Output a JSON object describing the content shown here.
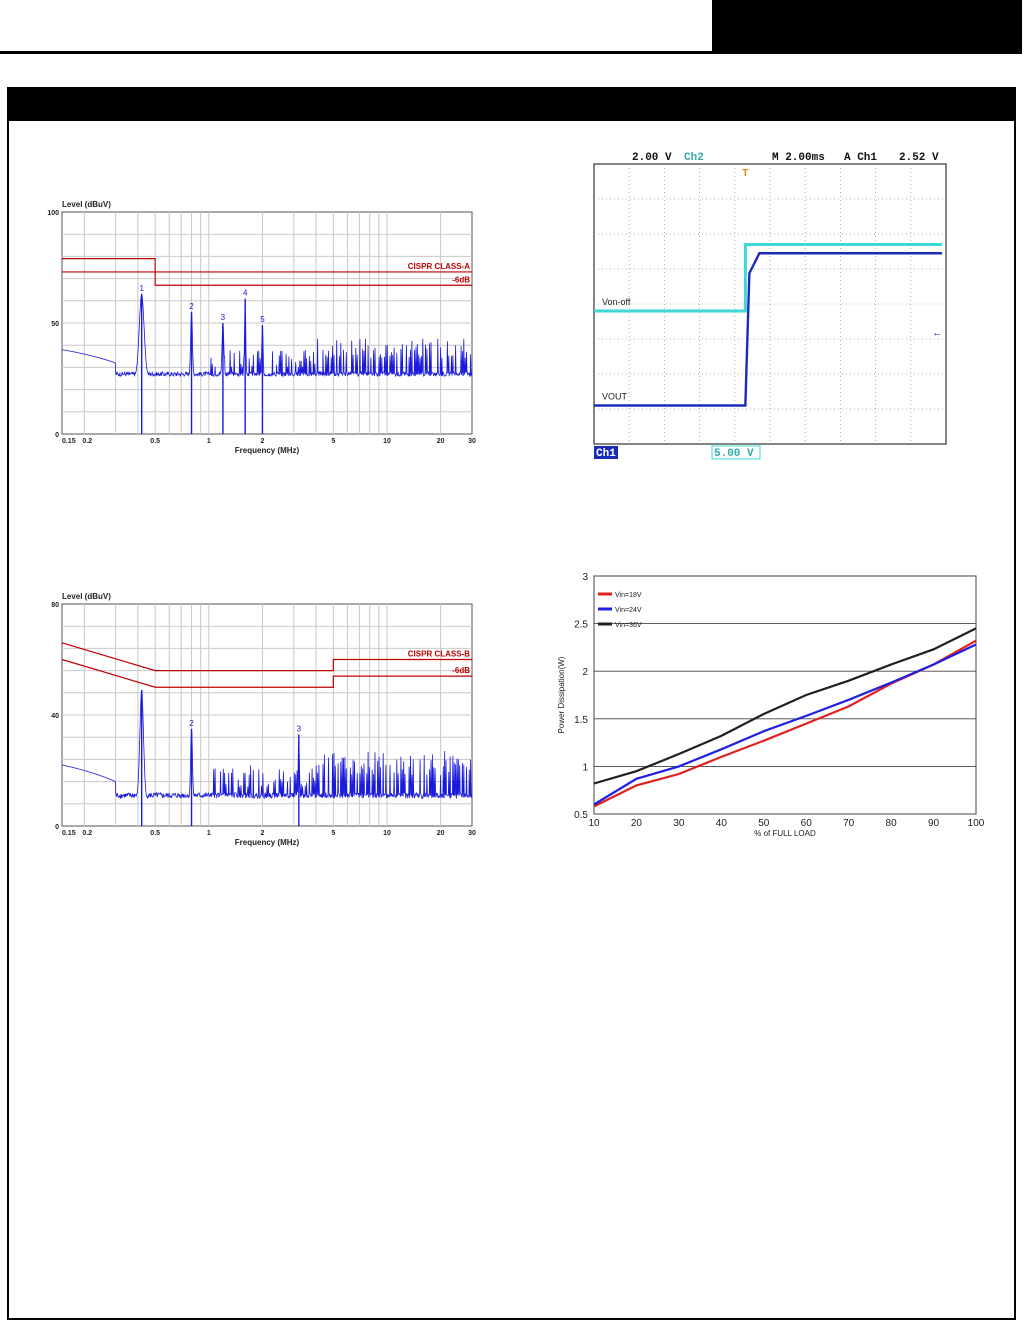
{
  "page": {
    "top_bar": "",
    "section_bar": ""
  },
  "charts": [
    {
      "type": "line",
      "ylabel": "Level (dBuV)",
      "xlabel": "Frequency (MHz)",
      "x_scale": "log",
      "xlim": [
        0.15,
        30
      ],
      "ylim": [
        0,
        100
      ],
      "y_ticks": [
        "0",
        "50",
        "100"
      ],
      "x_ticks": [
        {
          "v": 0.15,
          "t": "0.15"
        },
        {
          "v": 0.2,
          "t": "0.2"
        },
        {
          "v": 0.5,
          "t": "0.5"
        },
        {
          "v": 1,
          "t": "1"
        },
        {
          "v": 2,
          "t": "2"
        },
        {
          "v": 5,
          "t": "5"
        },
        {
          "v": 10,
          "t": "10"
        },
        {
          "v": 20,
          "t": "20"
        },
        {
          "v": 30,
          "t": "30"
        }
      ],
      "limits": [
        {
          "name": "CISPR CLASS-A",
          "points": [
            [
              0.15,
              79
            ],
            [
              0.5,
              79
            ],
            [
              0.5,
              73
            ],
            [
              30,
              73
            ]
          ]
        },
        {
          "name": "-6dB",
          "points": [
            [
              0.15,
              73
            ],
            [
              0.5,
              73
            ],
            [
              0.5,
              67
            ],
            [
              30,
              67
            ]
          ]
        }
      ],
      "peaks": [
        {
          "label": "1",
          "x": 0.42,
          "y": 63,
          "w": 0.08
        },
        {
          "label": "2",
          "x": 0.8,
          "y": 55,
          "w": 0.03
        },
        {
          "label": "3",
          "x": 1.2,
          "y": 50,
          "w": 0.03
        },
        {
          "label": "4",
          "x": 1.6,
          "y": 61,
          "w": 0.02
        },
        {
          "label": "5",
          "x": 2.0,
          "y": 49,
          "w": 0.02
        }
      ],
      "baseline": 26,
      "colors": {
        "trace": "#1a1adc",
        "limit": "#c00000",
        "grid": "#c8c8c8"
      }
    },
    {
      "type": "line",
      "ylabel": "Level (dBuV)",
      "xlabel": "Frequency (MHz)",
      "x_scale": "log",
      "xlim": [
        0.15,
        30
      ],
      "ylim": [
        0,
        80
      ],
      "y_ticks": [
        "0",
        "40",
        "80"
      ],
      "x_ticks": [
        {
          "v": 0.15,
          "t": "0.15"
        },
        {
          "v": 0.2,
          "t": "0.2"
        },
        {
          "v": 0.5,
          "t": "0.5"
        },
        {
          "v": 1,
          "t": "1"
        },
        {
          "v": 2,
          "t": "2"
        },
        {
          "v": 5,
          "t": "5"
        },
        {
          "v": 10,
          "t": "10"
        },
        {
          "v": 20,
          "t": "20"
        },
        {
          "v": 30,
          "t": "30"
        }
      ],
      "limits": [
        {
          "name": "CISPR CLASS-B",
          "points": [
            [
              0.15,
              66
            ],
            [
              0.5,
              56
            ],
            [
              5,
              56
            ],
            [
              5,
              60
            ],
            [
              30,
              60
            ]
          ]
        },
        {
          "name": "-6dB",
          "points": [
            [
              0.15,
              60
            ],
            [
              0.5,
              50
            ],
            [
              5,
              50
            ],
            [
              5,
              54
            ],
            [
              30,
              54
            ]
          ]
        }
      ],
      "peaks": [
        {
          "label": "",
          "x": 0.42,
          "y": 49,
          "w": 0.06
        },
        {
          "label": "2",
          "x": 0.8,
          "y": 35,
          "w": 0.03
        },
        {
          "label": "3",
          "x": 3.2,
          "y": 33,
          "w": 0.02
        }
      ],
      "baseline": 10,
      "colors": {
        "trace": "#1a1adc",
        "limit": "#c00000",
        "grid": "#c8c8c8"
      }
    },
    {
      "type": "line",
      "ylabel": "Power Dissipation(W)",
      "xlabel": "% of FULL LOAD",
      "xlim": [
        10,
        100
      ],
      "ylim": [
        0.5,
        3
      ],
      "x_ticks": [
        "10",
        "20",
        "30",
        "40",
        "50",
        "60",
        "70",
        "80",
        "90",
        "100"
      ],
      "y_ticks": [
        "0.5",
        "1",
        "1.5",
        "2",
        "2.5",
        "3"
      ],
      "legend": "top-left",
      "series": [
        {
          "name": "Vin=18V",
          "color": "#e02020",
          "x": [
            10,
            20,
            30,
            40,
            50,
            60,
            70,
            80,
            90,
            100
          ],
          "values": [
            0.58,
            0.8,
            0.92,
            1.1,
            1.27,
            1.45,
            1.63,
            1.87,
            2.07,
            2.32
          ]
        },
        {
          "name": "Vin=24V",
          "color": "#2020e0",
          "x": [
            10,
            20,
            30,
            40,
            50,
            60,
            70,
            80,
            90,
            100
          ],
          "values": [
            0.6,
            0.87,
            1.0,
            1.18,
            1.37,
            1.53,
            1.7,
            1.88,
            2.07,
            2.28
          ]
        },
        {
          "name": "Vin=36V",
          "color": "#202020",
          "x": [
            10,
            20,
            30,
            40,
            50,
            60,
            70,
            80,
            90,
            100
          ],
          "values": [
            0.82,
            0.95,
            1.13,
            1.32,
            1.55,
            1.75,
            1.9,
            2.07,
            2.23,
            2.45
          ]
        }
      ]
    }
  ],
  "scope": {
    "ch1_label": "Ch1",
    "ch1_scale": "2.00 V",
    "ch2_label": "Ch2",
    "ch2_scale": "5.00 V",
    "timebase": "M 2.00ms",
    "trigger_src": "A  Ch1",
    "trigger_level": "2.52 V",
    "trig_marker": "T",
    "von_label": "Von-off",
    "vout_label": "VOUT",
    "divisions": {
      "x": 10,
      "y": 8
    },
    "von_off_levels_div": [
      4.2,
      2.3
    ],
    "vout_levels_div": [
      1.1,
      5.45
    ],
    "step_time_div": 4.3,
    "colors": {
      "ch1": "#1a2bb8",
      "ch2": "#3fd6d6",
      "screen": "#ffffff",
      "grid": "#9a9a9a"
    }
  }
}
